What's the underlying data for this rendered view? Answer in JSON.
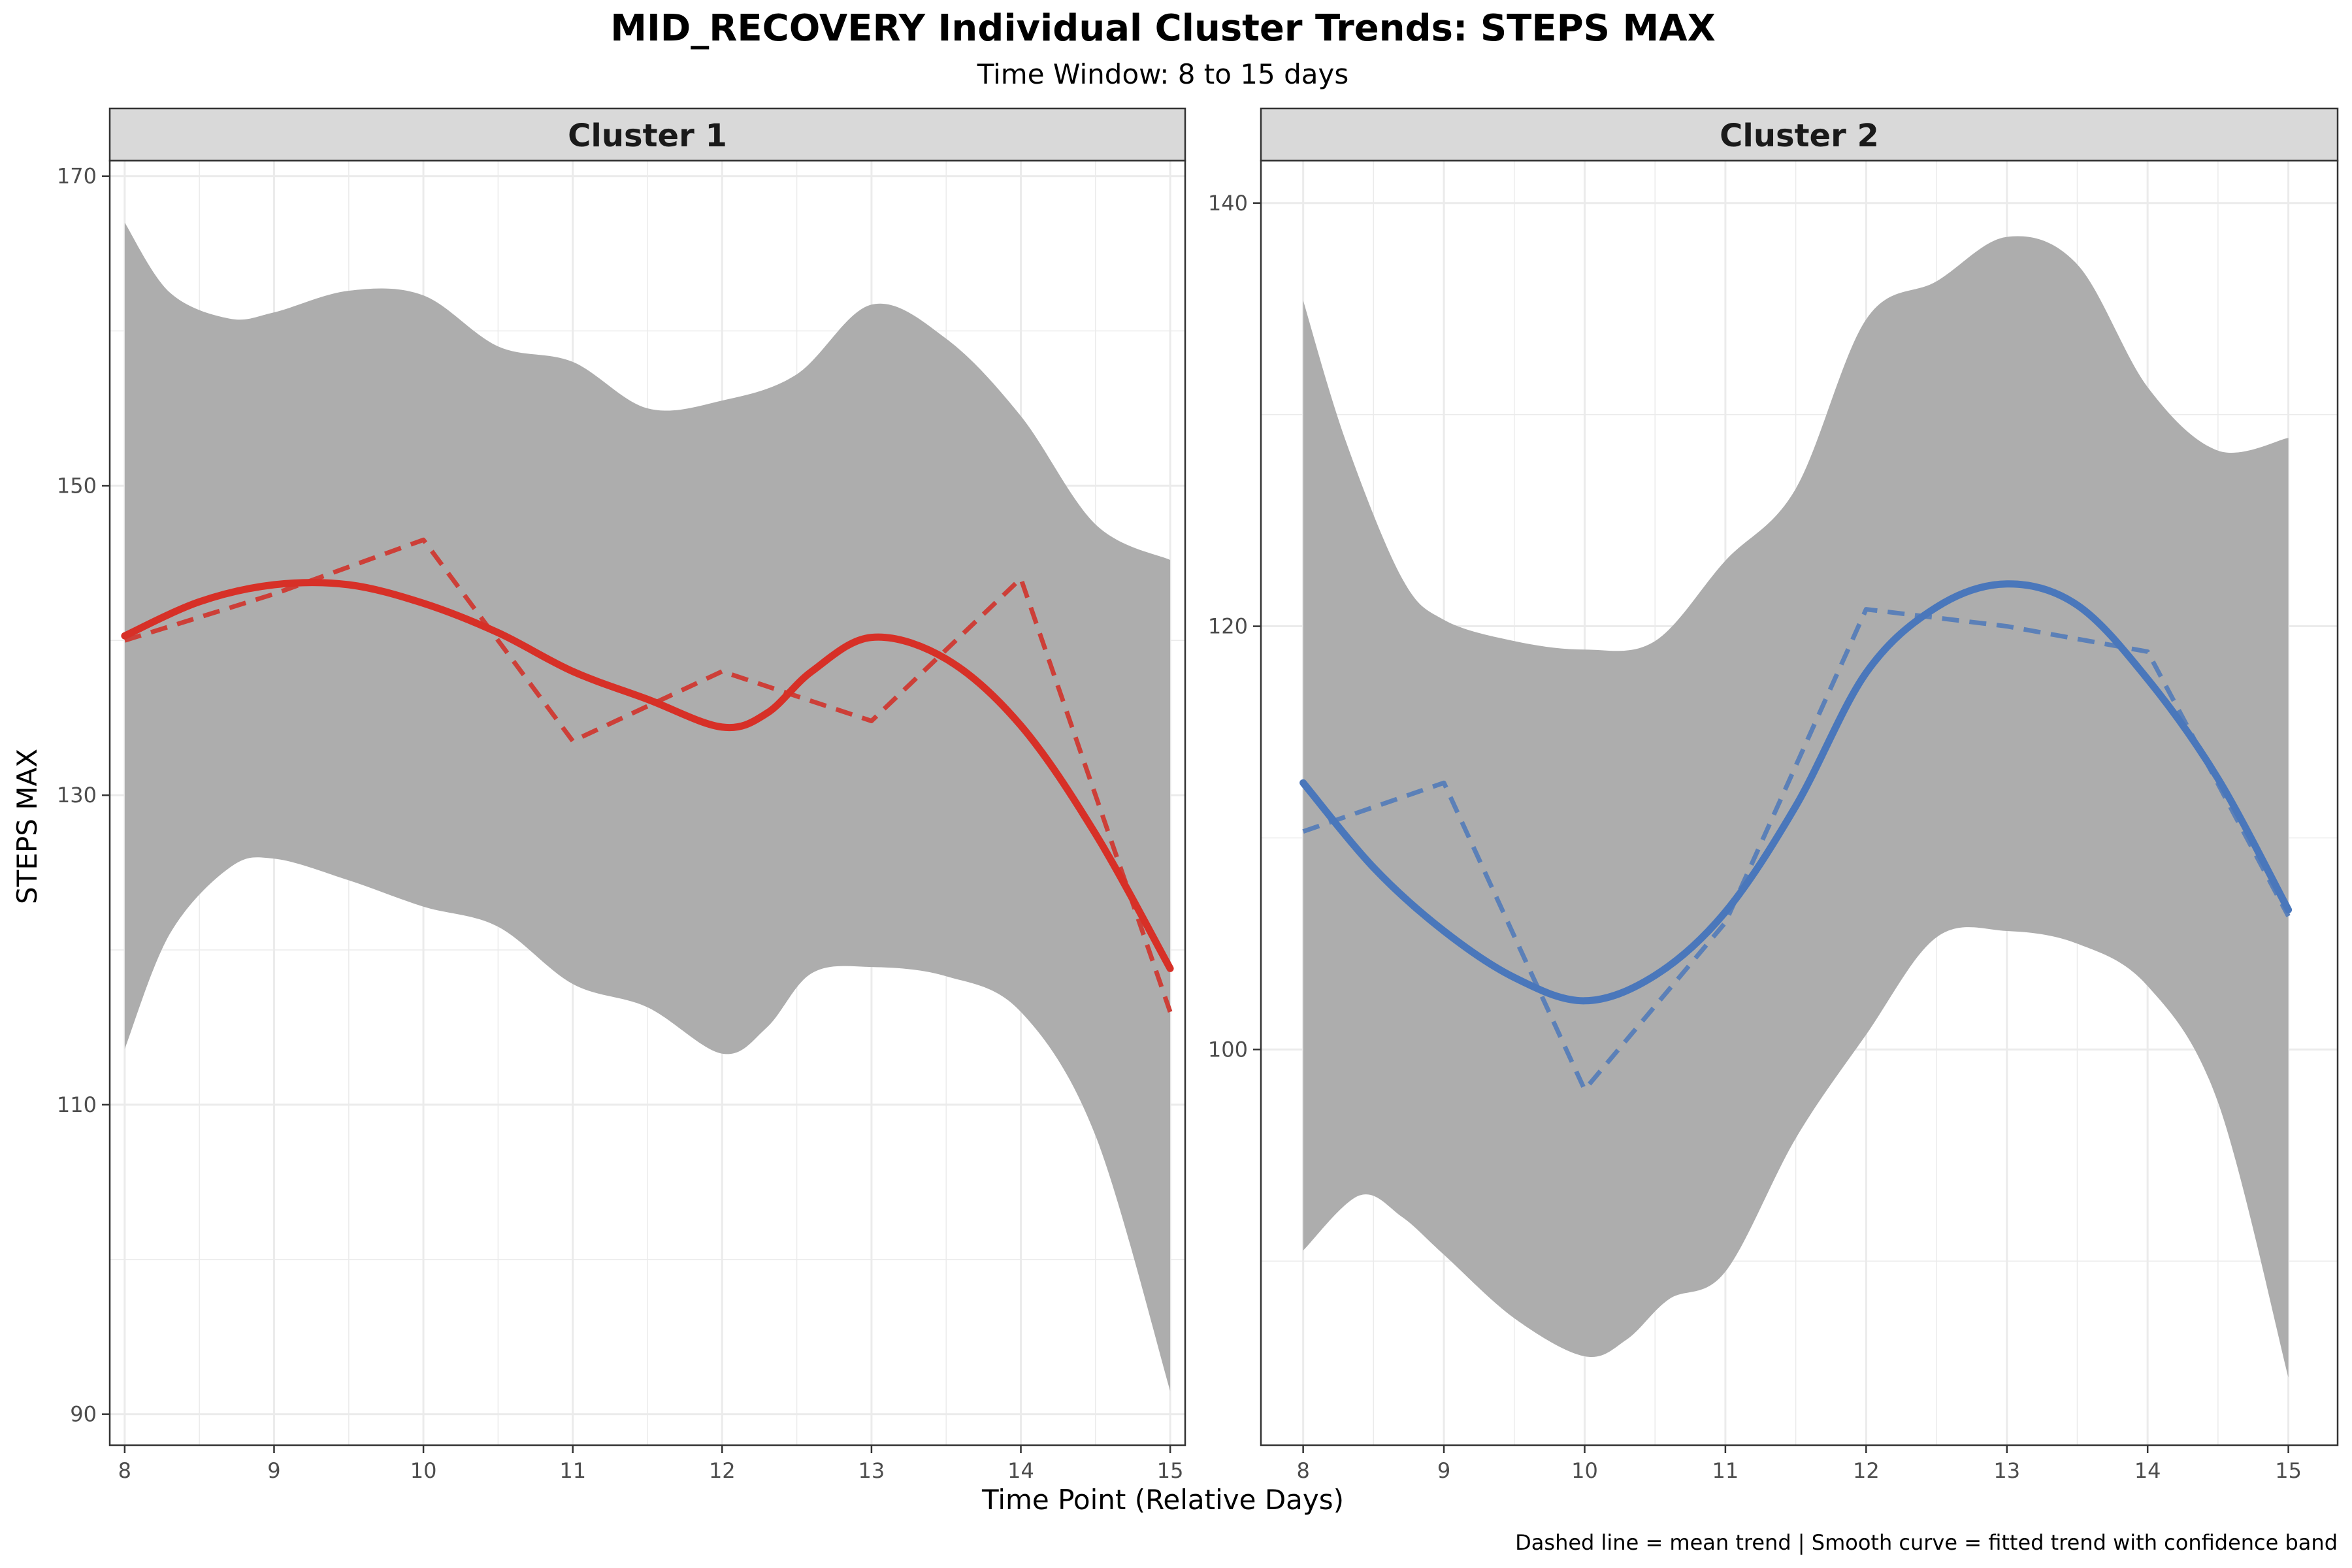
{
  "title": "MID_RECOVERY Individual Cluster Trends: STEPS MAX",
  "subtitle": "Time Window: 8 to 15 days",
  "xlabel": "Time Point (Relative Days)",
  "ylabel": "STEPS MAX",
  "caption": "Dashed line = mean trend | Smooth curve = fitted trend with confidence band",
  "colors": {
    "band": "#adadad",
    "cluster1_smooth": "#d73027",
    "cluster1_mean": "#cd3f38",
    "cluster2_smooth": "#4a77bb",
    "cluster2_mean": "#5b80b8",
    "strip_bg": "#d9d9d9",
    "grid": "#ebebeb"
  },
  "chart_data": [
    {
      "type": "line",
      "panel": "Cluster 1",
      "x": [
        8,
        9,
        10,
        11,
        12,
        13,
        14,
        15
      ],
      "xlim": [
        7.9,
        15.1
      ],
      "ylim": [
        88,
        171
      ],
      "x_ticks": [
        8,
        9,
        10,
        11,
        12,
        13,
        14,
        15
      ],
      "y_ticks": [
        90,
        110,
        130,
        150,
        170
      ],
      "grid": true,
      "series": [
        {
          "style": "dashed",
          "color": "#cd3f38",
          "points": [
            [
              8,
              140
            ],
            [
              9,
              143
            ],
            [
              10,
              146.5
            ],
            [
              11,
              133.5
            ],
            [
              12,
              138
            ],
            [
              13,
              134.8
            ],
            [
              14,
              144
            ],
            [
              15,
              116
            ]
          ]
        },
        {
          "style": "smooth",
          "color": "#d73027",
          "points": [
            [
              8,
              140.3
            ],
            [
              8.5,
              142.5
            ],
            [
              9,
              143.6
            ],
            [
              9.5,
              143.6
            ],
            [
              10,
              142.4
            ],
            [
              10.5,
              140.5
            ],
            [
              11,
              138
            ],
            [
              11.5,
              136.2
            ],
            [
              12,
              134.4
            ],
            [
              12.3,
              135.3
            ],
            [
              12.6,
              138
            ],
            [
              13,
              140.2
            ],
            [
              13.5,
              138.8
            ],
            [
              14,
              134.5
            ],
            [
              14.5,
              127.5
            ],
            [
              15,
              118.8
            ]
          ]
        },
        {
          "style": "band",
          "upper": [
            [
              8,
              167
            ],
            [
              8.3,
              162.5
            ],
            [
              8.7,
              160.8
            ],
            [
              9,
              161.2
            ],
            [
              9.5,
              162.6
            ],
            [
              10,
              162.3
            ],
            [
              10.5,
              159
            ],
            [
              11,
              158
            ],
            [
              11.5,
              155
            ],
            [
              12,
              155.5
            ],
            [
              12.5,
              157.2
            ],
            [
              13,
              161.7
            ],
            [
              13.5,
              159.5
            ],
            [
              14,
              154.5
            ],
            [
              14.5,
              147.5
            ],
            [
              15,
              145.2
            ]
          ],
          "lower": [
            [
              8,
              113.6
            ],
            [
              8.3,
              121
            ],
            [
              8.7,
              125.3
            ],
            [
              9,
              125.9
            ],
            [
              9.5,
              124.5
            ],
            [
              10,
              122.8
            ],
            [
              10.5,
              121.5
            ],
            [
              11,
              117.8
            ],
            [
              11.5,
              116.3
            ],
            [
              12,
              113.3
            ],
            [
              12.3,
              115
            ],
            [
              12.6,
              118.5
            ],
            [
              13,
              118.9
            ],
            [
              13.5,
              118.3
            ],
            [
              14,
              116
            ],
            [
              14.5,
              108
            ],
            [
              15,
              91.5
            ]
          ]
        }
      ]
    },
    {
      "type": "line",
      "panel": "Cluster 2",
      "x": [
        8,
        9,
        10,
        11,
        12,
        13,
        14,
        15
      ],
      "xlim": [
        7.7,
        15.35
      ],
      "ylim": [
        81.3,
        142
      ],
      "x_ticks": [
        8,
        9,
        10,
        11,
        12,
        13,
        14,
        15
      ],
      "y_ticks": [
        100,
        120,
        140
      ],
      "grid": true,
      "series": [
        {
          "style": "dashed",
          "color": "#5b80b8",
          "points": [
            [
              8,
              110.3
            ],
            [
              9,
              112.6
            ],
            [
              10,
              98.1
            ],
            [
              11,
              106
            ],
            [
              12,
              120.8
            ],
            [
              13,
              120
            ],
            [
              14,
              118.8
            ],
            [
              15,
              106.3
            ]
          ]
        },
        {
          "style": "smooth",
          "color": "#4a77bb",
          "points": [
            [
              8,
              112.6
            ],
            [
              8.5,
              108.6
            ],
            [
              9,
              105.6
            ],
            [
              9.5,
              103.4
            ],
            [
              10,
              102.3
            ],
            [
              10.5,
              103.5
            ],
            [
              11,
              106.5
            ],
            [
              11.5,
              111.5
            ],
            [
              12,
              117.8
            ],
            [
              12.5,
              120.9
            ],
            [
              13,
              122
            ],
            [
              13.5,
              121
            ],
            [
              14,
              117.5
            ],
            [
              14.5,
              112.8
            ],
            [
              15,
              106.6
            ]
          ]
        },
        {
          "style": "band",
          "upper": [
            [
              8,
              135.4
            ],
            [
              8.3,
              128.8
            ],
            [
              8.7,
              122.3
            ],
            [
              9,
              120.3
            ],
            [
              9.5,
              119.3
            ],
            [
              10,
              118.9
            ],
            [
              10.5,
              119.3
            ],
            [
              11,
              123.1
            ],
            [
              11.5,
              126.5
            ],
            [
              12,
              134.5
            ],
            [
              12.5,
              136.3
            ],
            [
              13,
              138.4
            ],
            [
              13.5,
              137.1
            ],
            [
              14,
              131.3
            ],
            [
              14.5,
              128.3
            ],
            [
              15,
              128.9
            ]
          ],
          "lower": [
            [
              8,
              90.5
            ],
            [
              8.4,
              93.1
            ],
            [
              8.7,
              92.1
            ],
            [
              9,
              90.3
            ],
            [
              9.5,
              87.3
            ],
            [
              10,
              85.5
            ],
            [
              10.3,
              86.3
            ],
            [
              10.6,
              88.2
            ],
            [
              11,
              89.5
            ],
            [
              11.5,
              95.8
            ],
            [
              12,
              100.7
            ],
            [
              12.5,
              105.3
            ],
            [
              13,
              105.6
            ],
            [
              13.5,
              105
            ],
            [
              14,
              103
            ],
            [
              14.5,
              97.5
            ],
            [
              15,
              84.5
            ]
          ]
        }
      ]
    }
  ]
}
